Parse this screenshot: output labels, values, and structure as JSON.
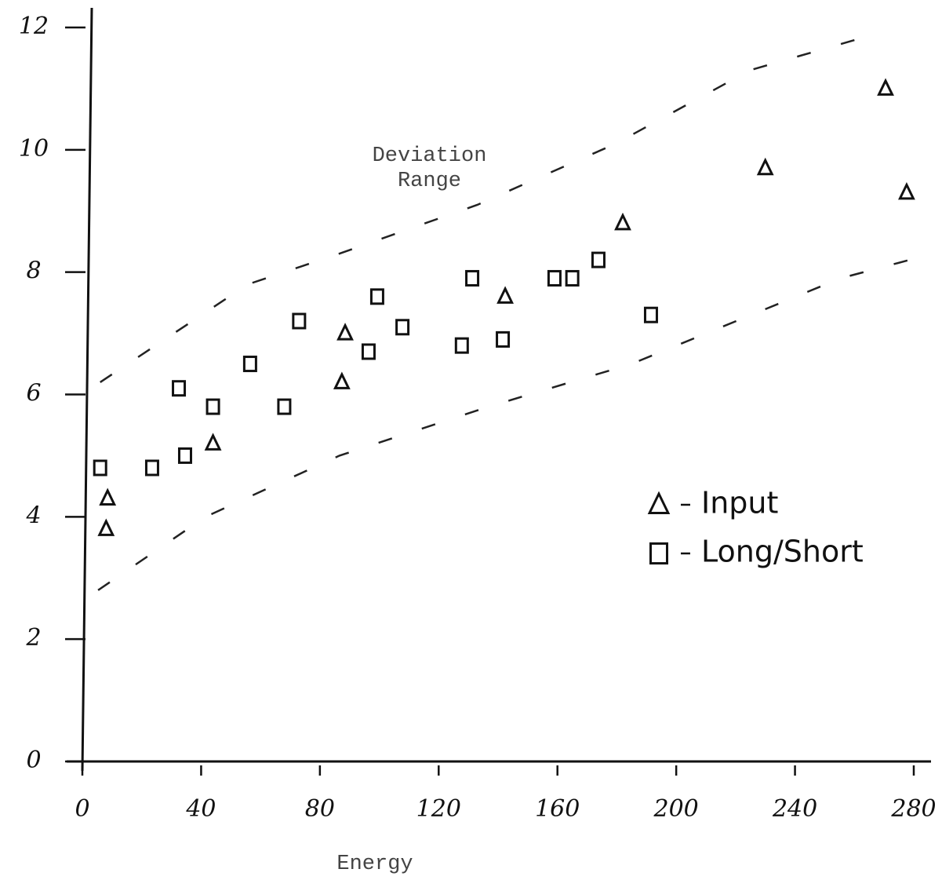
{
  "chart_data": {
    "type": "scatter",
    "xlabel": "Energy",
    "annotation": "Deviation Range",
    "xlim": [
      0,
      280
    ],
    "xticks": [
      0,
      40,
      80,
      120,
      160,
      200,
      240,
      280
    ],
    "ylim": [
      0,
      12
    ],
    "yticks": [
      0,
      2,
      4,
      6,
      8,
      10,
      12
    ],
    "grid": false,
    "legend": "center right",
    "series": [
      {
        "name": "Input",
        "marker": "triangle",
        "color": "#111111",
        "x": [
          8,
          8.5,
          44,
          87.4,
          88.5,
          142.4,
          182,
          230,
          270.5,
          277.6
        ],
        "values": [
          3.8,
          4.3,
          5.2,
          6.2,
          7.0,
          7.6,
          8.8,
          9.7,
          11.0,
          9.3
        ]
      },
      {
        "name": "Long/Short",
        "marker": "square",
        "color": "#111111",
        "x": [
          6,
          23.5,
          34.6,
          32.5,
          44,
          56.5,
          68,
          73,
          96.4,
          99.3,
          107.8,
          127.8,
          131.3,
          141.6,
          159,
          165,
          173.8,
          191.5
        ],
        "values": [
          4.8,
          4.8,
          5.0,
          6.1,
          5.8,
          6.5,
          5.8,
          7.2,
          6.7,
          7.6,
          7.1,
          6.8,
          7.9,
          6.9,
          7.9,
          7.9,
          8.2,
          7.3
        ]
      }
    ],
    "deviation_range": {
      "color": "#222222",
      "upper": {
        "x": [
          6,
          55.7,
          86.4,
          133,
          179.6,
          224.8,
          267.6
        ],
        "y": [
          6.2,
          7.8,
          8.3,
          9.1,
          10.1,
          11.3,
          11.9
        ]
      },
      "lower": {
        "x": [
          5.3,
          41.5,
          86.6,
          136.8,
          185,
          255.4,
          278.6
        ],
        "y": [
          2.8,
          4.0,
          5.0,
          5.8,
          6.5,
          7.9,
          8.2
        ]
      }
    }
  }
}
